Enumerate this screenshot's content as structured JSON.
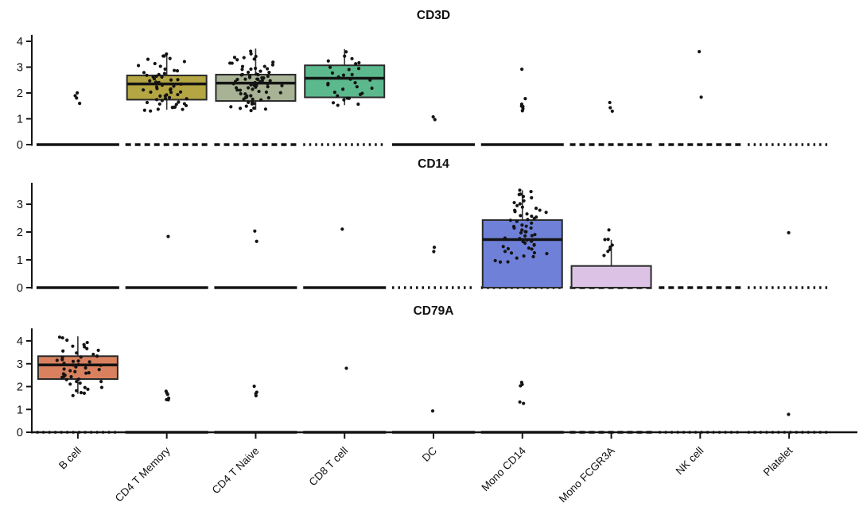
{
  "figure": {
    "kind": "stacked gene expression box/jitter plots",
    "panel_titles": [
      "CD3D",
      "CD14",
      "CD79A"
    ]
  },
  "chart_data": {
    "type": "boxplot-jitter",
    "legend": "none",
    "grid": "off",
    "x_labels_rotation": 45,
    "categories": [
      "B cell",
      "CD4 T Memory",
      "CD4 T Naive",
      "CD8 T cell",
      "DC",
      "Mono CD14",
      "Mono FCGR3A",
      "NK cell",
      "Platelet"
    ],
    "colors": {
      "B cell": "#D9815F",
      "CD4 T Memory": "#B4A642",
      "CD4 T Naive": "#A8B295",
      "CD8 T cell": "#5CB98D",
      "Mono CD14": "#6F80D8",
      "Mono FCGR3A": "#DCC3E5"
    },
    "point_color": "#141414",
    "panels": [
      {
        "gene": "CD3D",
        "yticks": [
          0,
          1,
          2,
          3,
          4
        ],
        "ylim": [
          0,
          4.25
        ],
        "cells": [
          {
            "category": "B cell",
            "box": null,
            "zero": "solid",
            "points": [
              2.0,
              1.9,
              1.78,
              1.62
            ]
          },
          {
            "category": "CD4 T Memory",
            "box": {
              "lo": 1.35,
              "q1": 1.74,
              "med": 2.35,
              "q3": 2.68,
              "hi": 3.45
            },
            "zero": "dashed",
            "points": [
              3.5,
              3.45,
              3.4,
              3.33,
              3.28,
              3.2,
              3.12,
              3.05,
              3.0,
              2.95,
              2.9,
              2.85,
              2.8,
              2.77,
              2.74,
              2.7,
              2.67,
              2.64,
              2.6,
              2.57,
              2.54,
              2.5,
              2.47,
              2.44,
              2.4,
              2.37,
              2.34,
              2.3,
              2.27,
              2.24,
              2.2,
              2.17,
              2.14,
              2.1,
              2.07,
              2.04,
              2.0,
              1.97,
              1.94,
              1.9,
              1.87,
              1.84,
              1.8,
              1.77,
              1.74,
              1.7,
              1.67,
              1.64,
              1.6,
              1.57,
              1.54,
              1.5,
              1.47,
              1.44,
              1.4,
              1.37,
              1.34,
              1.3,
              1.45
            ]
          },
          {
            "category": "CD4 T Naive",
            "box": {
              "lo": 1.35,
              "q1": 1.69,
              "med": 2.38,
              "q3": 2.71,
              "hi": 3.72
            },
            "zero": "dashed",
            "points": [
              3.6,
              3.52,
              3.45,
              3.4,
              3.35,
              3.3,
              3.26,
              3.22,
              3.18,
              3.14,
              3.1,
              3.05,
              3.0,
              2.97,
              2.94,
              2.91,
              2.88,
              2.85,
              2.82,
              2.79,
              2.76,
              2.73,
              2.7,
              2.68,
              2.66,
              2.64,
              2.62,
              2.6,
              2.58,
              2.56,
              2.54,
              2.52,
              2.5,
              2.48,
              2.46,
              2.44,
              2.42,
              2.4,
              2.38,
              2.36,
              2.34,
              2.32,
              2.3,
              2.28,
              2.26,
              2.24,
              2.22,
              2.2,
              2.17,
              2.14,
              2.11,
              2.08,
              2.05,
              2.02,
              2.0,
              1.97,
              1.94,
              1.91,
              1.88,
              1.85,
              1.82,
              1.79,
              1.76,
              1.73,
              1.7,
              1.67,
              1.64,
              1.6,
              1.56,
              1.52,
              1.48,
              1.44,
              1.4,
              1.36,
              1.32
            ]
          },
          {
            "category": "CD8 T cell",
            "box": {
              "lo": 1.53,
              "q1": 1.83,
              "med": 2.57,
              "q3": 3.07,
              "hi": 3.7
            },
            "zero": "dotted",
            "points": [
              3.6,
              3.45,
              3.35,
              3.25,
              3.18,
              3.1,
              3.02,
              2.95,
              2.88,
              2.8,
              2.73,
              2.66,
              2.6,
              2.54,
              2.48,
              2.42,
              2.36,
              2.3,
              2.24,
              2.18,
              2.12,
              2.06,
              2.0,
              1.94,
              1.88,
              1.82,
              1.76,
              1.7,
              1.64,
              1.58,
              1.52
            ]
          },
          {
            "category": "DC",
            "box": null,
            "zero": "solid",
            "points": [
              1.05,
              0.95
            ]
          },
          {
            "category": "Mono CD14",
            "box": null,
            "zero": "solid",
            "points": [
              2.9,
              1.75,
              1.6,
              1.52,
              1.47,
              1.42,
              1.33
            ]
          },
          {
            "category": "Mono FCGR3A",
            "box": null,
            "zero": "dashed",
            "points": [
              1.62,
              1.45,
              1.27
            ]
          },
          {
            "category": "NK cell",
            "box": null,
            "zero": "dashed",
            "points": [
              3.6,
              1.82
            ]
          },
          {
            "category": "Platelet",
            "box": null,
            "zero": "dotted",
            "points": []
          }
        ]
      },
      {
        "gene": "CD14",
        "yticks": [
          0,
          1,
          2,
          3
        ],
        "ylim": [
          0,
          3.77
        ],
        "cells": [
          {
            "category": "B cell",
            "box": null,
            "zero": "solid",
            "points": []
          },
          {
            "category": "CD4 T Memory",
            "box": null,
            "zero": "solid",
            "points": [
              1.85
            ]
          },
          {
            "category": "CD4 T Naive",
            "box": null,
            "zero": "solid",
            "points": [
              2.05,
              1.67
            ]
          },
          {
            "category": "CD8 T cell",
            "box": null,
            "zero": "solid",
            "points": [
              2.12
            ]
          },
          {
            "category": "DC",
            "box": null,
            "zero": "dotted",
            "points": [
              1.42,
              1.27
            ]
          },
          {
            "category": "Mono CD14",
            "box": {
              "lo": 0,
              "q1": 0,
              "med": 1.73,
              "q3": 2.43,
              "hi": 3.5
            },
            "zero": "dotted",
            "points": [
              3.5,
              3.44,
              3.38,
              3.32,
              3.26,
              3.2,
              3.14,
              3.08,
              3.02,
              2.96,
              2.9,
              2.85,
              2.8,
              2.76,
              2.72,
              2.68,
              2.64,
              2.6,
              2.56,
              2.52,
              2.48,
              2.44,
              2.4,
              2.36,
              2.32,
              2.28,
              2.24,
              2.2,
              2.16,
              2.12,
              2.08,
              2.04,
              2.0,
              1.96,
              1.92,
              1.88,
              1.84,
              1.8,
              1.76,
              1.72,
              1.68,
              1.64,
              1.6,
              1.56,
              1.52,
              1.48,
              1.44,
              1.4,
              1.36,
              1.32,
              1.28,
              1.24,
              1.2,
              1.15,
              1.1,
              1.05,
              1.0,
              0.95,
              0.9
            ]
          },
          {
            "category": "Mono FCGR3A",
            "box": {
              "lo": 0,
              "q1": 0,
              "med": 0,
              "q3": 0.78,
              "hi": 1.72
            },
            "zero": "dashed",
            "points": [
              2.05,
              1.75,
              1.7,
              1.5,
              1.45,
              1.38,
              1.32,
              1.15
            ]
          },
          {
            "category": "NK cell",
            "box": null,
            "zero": "dashed",
            "points": []
          },
          {
            "category": "Platelet",
            "box": null,
            "zero": "dotted",
            "points": [
              2.0
            ]
          }
        ]
      },
      {
        "gene": "CD79A",
        "yticks": [
          0,
          1,
          2,
          3,
          4
        ],
        "ylim": [
          0,
          4.55
        ],
        "cells": [
          {
            "category": "B cell",
            "box": {
              "lo": 1.68,
              "q1": 2.33,
              "med": 2.95,
              "q3": 3.33,
              "hi": 4.2
            },
            "zero": "dotted",
            "points": [
              4.2,
              4.1,
              4.0,
              3.92,
              3.84,
              3.76,
              3.7,
              3.64,
              3.58,
              3.52,
              3.46,
              3.4,
              3.35,
              3.3,
              3.26,
              3.22,
              3.18,
              3.14,
              3.1,
              3.06,
              3.02,
              2.98,
              2.94,
              2.9,
              2.86,
              2.82,
              2.78,
              2.74,
              2.7,
              2.66,
              2.62,
              2.58,
              2.54,
              2.5,
              2.46,
              2.42,
              2.38,
              2.34,
              2.3,
              2.26,
              2.2,
              2.14,
              2.08,
              2.0,
              1.94,
              1.88,
              1.82,
              1.76,
              1.7,
              1.64
            ]
          },
          {
            "category": "CD4 T Memory",
            "box": null,
            "zero": "solid",
            "points": [
              1.78,
              1.7,
              1.63,
              1.5,
              1.45,
              1.4
            ]
          },
          {
            "category": "CD4 T Naive",
            "box": null,
            "zero": "solid",
            "points": [
              2.05,
              1.75,
              1.68,
              1.6
            ]
          },
          {
            "category": "CD8 T cell",
            "box": null,
            "zero": "solid",
            "points": [
              2.78
            ]
          },
          {
            "category": "DC",
            "box": null,
            "zero": "solid",
            "points": [
              0.97
            ]
          },
          {
            "category": "Mono CD14",
            "box": null,
            "zero": "solid",
            "points": [
              2.2,
              2.12,
              2.05,
              1.35,
              1.28
            ]
          },
          {
            "category": "Mono FCGR3A",
            "box": null,
            "zero": "dashed",
            "points": []
          },
          {
            "category": "NK cell",
            "box": null,
            "zero": "dotted",
            "points": []
          },
          {
            "category": "Platelet",
            "box": null,
            "zero": "dotted",
            "points": [
              0.75
            ]
          }
        ]
      }
    ]
  }
}
